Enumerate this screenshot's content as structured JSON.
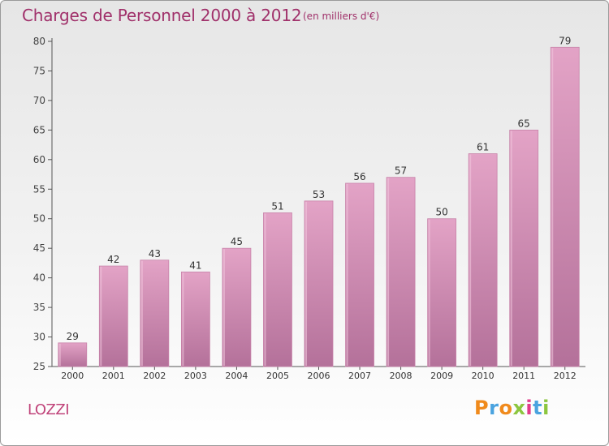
{
  "title": "Charges de Personnel 2000 à 2012",
  "subtitle": "(en milliers d'€)",
  "commune": "LOZZI",
  "logo": {
    "letters": [
      "P",
      "r",
      "o",
      "x",
      "i",
      "t",
      "i"
    ],
    "colors": [
      "#f08a1c",
      "#4aa3df",
      "#f08a1c",
      "#8cc63f",
      "#e23b8a",
      "#4aa3df",
      "#8cc63f"
    ]
  },
  "colors": {
    "bar": "#d98ab4",
    "bar_dark": "#b86b94",
    "title": "#a0306a"
  },
  "chart_data": {
    "type": "bar",
    "categories": [
      "2000",
      "2001",
      "2002",
      "2003",
      "2004",
      "2005",
      "2006",
      "2007",
      "2008",
      "2009",
      "2010",
      "2011",
      "2012"
    ],
    "values": [
      29,
      42,
      43,
      41,
      45,
      51,
      53,
      56,
      57,
      50,
      61,
      65,
      79
    ],
    "ylim": [
      25,
      80
    ],
    "yticks": [
      25,
      30,
      35,
      40,
      45,
      50,
      55,
      60,
      65,
      70,
      75,
      80
    ],
    "grid": false,
    "legend": "none"
  }
}
